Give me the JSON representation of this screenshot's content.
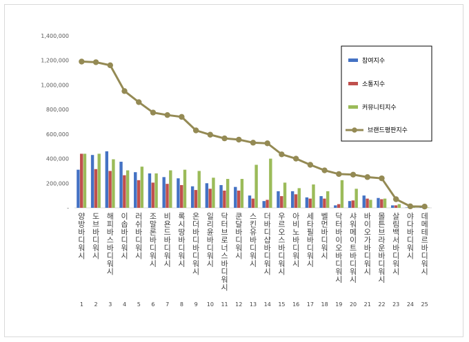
{
  "chart_data": {
    "type": "bar",
    "categories": [
      "양방바디워시",
      "도브바디워시",
      "해피바스바디워시",
      "이솝바디워시",
      "러쉬바디워시",
      "조말론바디워시",
      "비욘드바디워시",
      "록시땅바디워시",
      "온더바디바디워시",
      "일리윤바디워시",
      "닥터브로너스바디워시",
      "쿤달바디워시",
      "스킨유바디워시",
      "더바디샵바디워시",
      "우르오스바디워시",
      "아비노바디워시",
      "세타필바디워시",
      "벨먼바디워시",
      "닥터바이오바디워시",
      "샤워메이트바디워시",
      "바이오가바디워시",
      "몰튼브라운바디워시",
      "살림백서바디워시",
      "야다바디워시",
      "데메테르바디워시"
    ],
    "rank_labels": [
      "1",
      "2",
      "3",
      "4",
      "5",
      "6",
      "7",
      "8",
      "9",
      "10",
      "11",
      "12",
      "13",
      "14",
      "15",
      "16",
      "17",
      "18",
      "19",
      "20",
      "21",
      "22",
      "23",
      "24",
      "25"
    ],
    "series": [
      {
        "name": "참여지수",
        "color": "#4472c4",
        "values": [
          310000,
          430000,
          460000,
          375000,
          290000,
          280000,
          250000,
          240000,
          175000,
          200000,
          185000,
          170000,
          100000,
          55000,
          135000,
          135000,
          85000,
          95000,
          20000,
          55000,
          100000,
          80000,
          20000,
          3000,
          3000
        ]
      },
      {
        "name": "소통지수",
        "color": "#c0504d",
        "values": [
          440000,
          315000,
          300000,
          265000,
          225000,
          205000,
          195000,
          185000,
          145000,
          155000,
          140000,
          140000,
          75000,
          65000,
          95000,
          110000,
          75000,
          75000,
          30000,
          60000,
          75000,
          70000,
          20000,
          3000,
          3000
        ]
      },
      {
        "name": "커뮤니티지수",
        "color": "#9bbb59",
        "values": [
          440000,
          440000,
          395000,
          305000,
          335000,
          280000,
          305000,
          310000,
          300000,
          245000,
          235000,
          235000,
          350000,
          400000,
          205000,
          160000,
          190000,
          135000,
          225000,
          155000,
          65000,
          75000,
          30000,
          3000,
          3000
        ]
      }
    ],
    "line_series": {
      "name": "브랜드평판지수",
      "color": "#948a54",
      "values": [
        1190000,
        1185000,
        1160000,
        950000,
        860000,
        775000,
        755000,
        740000,
        630000,
        595000,
        565000,
        555000,
        530000,
        525000,
        435000,
        400000,
        350000,
        305000,
        275000,
        270000,
        250000,
        240000,
        70000,
        12000,
        10000
      ]
    },
    "yticks": [
      "-",
      "200,000",
      "400,000",
      "600,000",
      "800,000",
      "1,000,000",
      "1,200,000",
      "1,400,000"
    ],
    "ylim": [
      0,
      1400000
    ],
    "legend_position": "top-right",
    "grid": false
  }
}
